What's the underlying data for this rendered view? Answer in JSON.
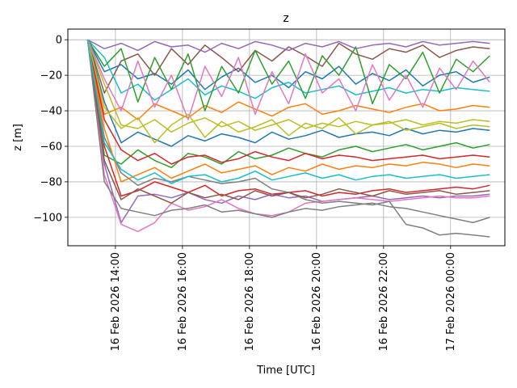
{
  "chart_data": {
    "type": "line",
    "title": "z",
    "xlabel": "Time  [UTC]",
    "ylabel": "z  [m]",
    "x_unit": "hours after 16 Feb 2026 00:00 UTC",
    "xlim": [
      12.58,
      25.62
    ],
    "ylim": [
      -116,
      6
    ],
    "grid": true,
    "legend": "none",
    "x_ticks": [
      {
        "value": 14,
        "label": "16 Feb 2026 14:00"
      },
      {
        "value": 16,
        "label": "16 Feb 2026 16:00"
      },
      {
        "value": 18,
        "label": "16 Feb 2026 18:00"
      },
      {
        "value": 20,
        "label": "16 Feb 2026 20:00"
      },
      {
        "value": 22,
        "label": "16 Feb 2026 22:00"
      },
      {
        "value": 24,
        "label": "17 Feb 2026 00:00"
      }
    ],
    "y_ticks": [
      0,
      -20,
      -40,
      -60,
      -80,
      -100
    ],
    "y_tick_labels": [
      "0",
      "−20",
      "−40",
      "−60",
      "−80",
      "−100"
    ],
    "x": [
      13.17,
      13.67,
      14.17,
      14.67,
      15.17,
      15.67,
      16.17,
      16.67,
      17.17,
      17.67,
      18.17,
      18.67,
      19.17,
      19.67,
      20.17,
      20.67,
      21.17,
      21.67,
      22.17,
      22.67,
      23.17,
      23.67,
      24.17,
      24.67,
      25.17
    ],
    "colors": [
      "#1f77b4",
      "#ff7f0e",
      "#2ca02c",
      "#d62728",
      "#9467bd",
      "#8c564b",
      "#e377c2",
      "#7f7f7f",
      "#bcbd22",
      "#17becf"
    ],
    "series": [
      {
        "values": [
          0,
          -18,
          -14,
          -22,
          -19,
          -25,
          -17,
          -28,
          -21,
          -16,
          -24,
          -20,
          -27,
          -18,
          -22,
          -15,
          -25,
          -19,
          -23,
          -17,
          -26,
          -20,
          -18,
          -24,
          -21
        ]
      },
      {
        "values": [
          0,
          -42,
          -38,
          -45,
          -36,
          -40,
          -44,
          -37,
          -41,
          -35,
          -39,
          -43,
          -38,
          -36,
          -42,
          -40,
          -37,
          -39,
          -41,
          -38,
          -36,
          -40,
          -39,
          -37,
          -38
        ]
      },
      {
        "values": [
          0,
          -65,
          -70,
          -62,
          -68,
          -72,
          -64,
          -66,
          -70,
          -63,
          -67,
          -65,
          -61,
          -64,
          -66,
          -62,
          -60,
          -63,
          -61,
          -59,
          -62,
          -60,
          -58,
          -61,
          -59
        ]
      },
      {
        "values": [
          0,
          -60,
          -88,
          -85,
          -80,
          -83,
          -86,
          -82,
          -88,
          -85,
          -84,
          -87,
          -86,
          -85,
          -88,
          -86,
          -87,
          -85,
          -84,
          -86,
          -85,
          -84,
          -83,
          -84,
          -82
        ]
      },
      {
        "values": [
          0,
          -70,
          -103,
          -88,
          -87,
          -89,
          -86,
          -90,
          -92,
          -88,
          -90,
          -87,
          -89,
          -88,
          -91,
          -90,
          -89,
          -88,
          -90,
          -89,
          -88,
          -89,
          -88,
          -88,
          -87
        ]
      },
      {
        "values": [
          0,
          -30,
          -12,
          -8,
          -20,
          -5,
          -14,
          -3,
          -10,
          -18,
          -6,
          -12,
          -4,
          -9,
          -15,
          -2,
          -8,
          -11,
          -5,
          -7,
          -3,
          -10,
          -6,
          -4,
          -5
        ]
      },
      {
        "values": [
          0,
          -76,
          -104,
          -108,
          -103,
          -92,
          -96,
          -94,
          -90,
          -95,
          -98,
          -99,
          -97,
          -92,
          -91,
          -90,
          -89,
          -90,
          -91,
          -90,
          -89,
          -88,
          -89,
          -89,
          -88
        ]
      },
      {
        "values": [
          0,
          -55,
          -75,
          -82,
          -78,
          -80,
          -77,
          -79,
          -81,
          -80,
          -78,
          -84,
          -86,
          -90,
          -92,
          -91,
          -92,
          -93,
          -91,
          -104,
          -106,
          -110,
          -109,
          -110,
          -111
        ]
      },
      {
        "values": [
          0,
          -25,
          -48,
          -50,
          -45,
          -52,
          -47,
          -44,
          -49,
          -46,
          -51,
          -48,
          -45,
          -50,
          -47,
          -49,
          -46,
          -48,
          -47,
          -45,
          -48,
          -46,
          -47,
          -45,
          -46
        ]
      },
      {
        "values": [
          0,
          -10,
          -30,
          -25,
          -34,
          -28,
          -22,
          -31,
          -26,
          -29,
          -33,
          -27,
          -24,
          -30,
          -28,
          -26,
          -31,
          -29,
          -27,
          -30,
          -28,
          -29,
          -27,
          -28,
          -29
        ]
      },
      {
        "values": [
          0,
          -35,
          -58,
          -52,
          -56,
          -60,
          -54,
          -57,
          -53,
          -55,
          -58,
          -52,
          -56,
          -54,
          -51,
          -55,
          -53,
          -52,
          -54,
          -50,
          -53,
          -51,
          -52,
          -50,
          -51
        ]
      },
      {
        "values": [
          0,
          -50,
          -80,
          -76,
          -72,
          -78,
          -74,
          -70,
          -75,
          -73,
          -71,
          -76,
          -72,
          -74,
          -70,
          -73,
          -71,
          -72,
          -70,
          -71,
          -69,
          -70,
          -72,
          -70,
          -71
        ]
      },
      {
        "values": [
          0,
          -15,
          -5,
          -35,
          -10,
          -28,
          -8,
          -40,
          -15,
          -30,
          -6,
          -25,
          -12,
          -33,
          -9,
          -20,
          -4,
          -36,
          -14,
          -22,
          -7,
          -30,
          -11,
          -18,
          -9
        ]
      },
      {
        "values": [
          0,
          -45,
          -62,
          -68,
          -64,
          -70,
          -66,
          -65,
          -69,
          -67,
          -63,
          -66,
          -68,
          -64,
          -67,
          -65,
          -66,
          -68,
          -67,
          -66,
          -65,
          -67,
          -66,
          -65,
          -66
        ]
      },
      {
        "values": [
          0,
          -5,
          -2,
          -6,
          -1,
          -4,
          -3,
          -7,
          -2,
          -5,
          -1,
          -3,
          -6,
          -2,
          -4,
          -1,
          -5,
          -3,
          -2,
          -4,
          -1,
          -3,
          -2,
          -1,
          -2
        ]
      },
      {
        "values": [
          0,
          -68,
          -90,
          -84,
          -88,
          -92,
          -86,
          -89,
          -87,
          -90,
          -85,
          -88,
          -86,
          -89,
          -87,
          -84,
          -86,
          -88,
          -85,
          -87,
          -86,
          -85,
          -87,
          -86,
          -85
        ]
      },
      {
        "values": [
          0,
          -22,
          -40,
          -12,
          -38,
          -20,
          -45,
          -15,
          -32,
          -10,
          -42,
          -18,
          -36,
          -8,
          -30,
          -22,
          -40,
          -14,
          -34,
          -20,
          -38,
          -16,
          -28,
          -12,
          -24
        ]
      },
      {
        "values": [
          0,
          -80,
          -95,
          -97,
          -99,
          -96,
          -95,
          -93,
          -97,
          -96,
          -98,
          -100,
          -97,
          -95,
          -96,
          -94,
          -93,
          -92,
          -94,
          -95,
          -97,
          -99,
          -101,
          -103,
          -100
        ]
      },
      {
        "values": [
          0,
          -38,
          -50,
          -44,
          -58,
          -48,
          -42,
          -55,
          -46,
          -52,
          -49,
          -45,
          -54,
          -47,
          -50,
          -44,
          -53,
          -48,
          -46,
          -51,
          -49,
          -47,
          -50,
          -48,
          -49
        ]
      },
      {
        "values": [
          0,
          -58,
          -73,
          -79,
          -75,
          -81,
          -77,
          -76,
          -80,
          -78,
          -74,
          -79,
          -77,
          -75,
          -78,
          -76,
          -79,
          -77,
          -76,
          -78,
          -77,
          -76,
          -78,
          -77,
          -76
        ]
      }
    ]
  }
}
